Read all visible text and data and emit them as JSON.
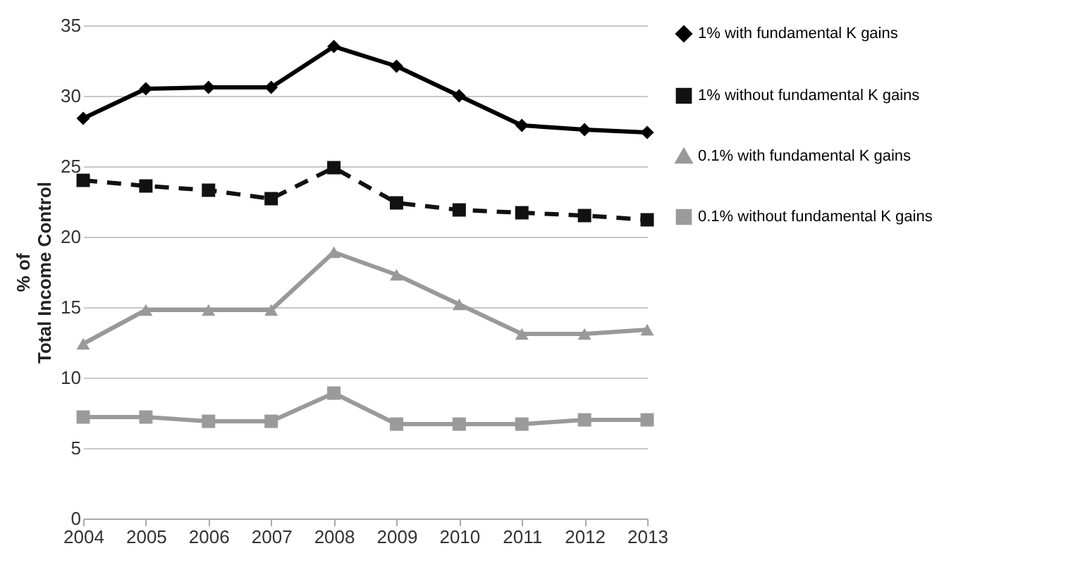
{
  "chart_data": {
    "type": "line",
    "ylabel": "% of\nTotal Income Control",
    "categories": [
      "2004",
      "2005",
      "2006",
      "2007",
      "2008",
      "2009",
      "2010",
      "2011",
      "2012",
      "2013"
    ],
    "series": [
      {
        "name": "1% with fundamental K gains",
        "color": "#000000",
        "marker": "diamond",
        "line_style": "solid",
        "values": [
          28.4,
          30.5,
          30.6,
          30.6,
          33.5,
          32.1,
          30.0,
          27.9,
          27.6,
          27.4
        ]
      },
      {
        "name": "1% without fundamental K gains",
        "color": "#111111",
        "marker": "square",
        "line_style": "dashed",
        "values": [
          24.0,
          23.6,
          23.3,
          22.7,
          24.9,
          22.4,
          21.9,
          21.7,
          21.5,
          21.2
        ]
      },
      {
        "name": "0.1% with fundamental K gains",
        "color": "#999999",
        "marker": "triangle",
        "line_style": "solid",
        "values": [
          12.4,
          14.8,
          14.8,
          14.8,
          18.9,
          17.3,
          15.2,
          13.1,
          13.1,
          13.4
        ]
      },
      {
        "name": "0.1% without fundamental K gains",
        "color": "#9a9a9a",
        "marker": "square",
        "line_style": "solid",
        "values": [
          7.2,
          7.2,
          6.9,
          6.9,
          8.9,
          6.7,
          6.7,
          6.7,
          7.0,
          7.0
        ]
      }
    ],
    "ylim": [
      0,
      35
    ],
    "yticks": [
      0,
      5,
      10,
      15,
      20,
      25,
      30,
      35
    ],
    "grid": "y",
    "legend": "right"
  }
}
